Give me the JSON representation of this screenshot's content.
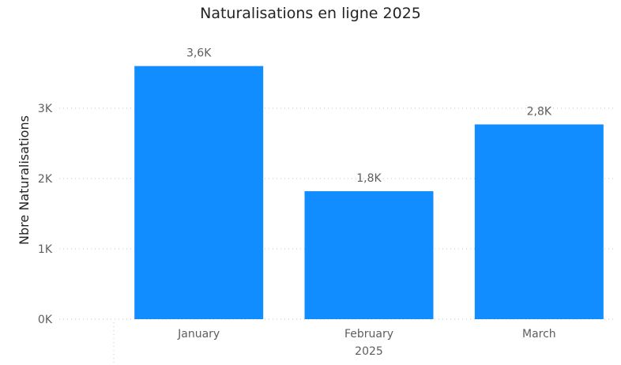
{
  "chart_data": {
    "type": "bar",
    "title": "Naturalisations en ligne 2025",
    "xlabel_year": "2025",
    "ylabel": "Nbre Naturalisations",
    "categories": [
      "January",
      "February",
      "March"
    ],
    "values": [
      3600,
      1820,
      2770
    ],
    "data_labels": [
      "3,6K",
      "1,8K",
      "2,8K"
    ],
    "ylim": [
      0,
      3800
    ],
    "yticks": [
      0,
      1000,
      2000,
      3000
    ],
    "ytick_labels": [
      "0K",
      "1K",
      "2K",
      "3K"
    ],
    "grid": true,
    "bar_color": "#118DFF"
  }
}
